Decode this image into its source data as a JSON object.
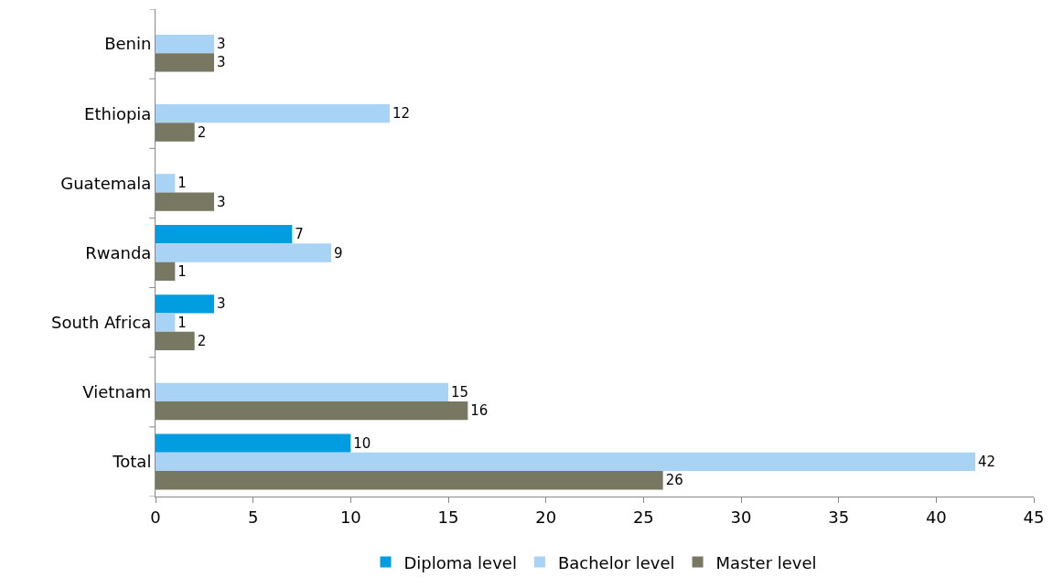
{
  "chart_data": {
    "type": "bar",
    "orientation": "horizontal",
    "categories": [
      "Benin",
      "Ethiopia",
      "Guatemala",
      "Rwanda",
      "South Africa",
      "Vietnam",
      "Total"
    ],
    "series": [
      {
        "name": "Diploma level",
        "color": "#009ee0",
        "values": [
          null,
          null,
          null,
          7,
          3,
          null,
          10
        ]
      },
      {
        "name": "Bachelor level",
        "color": "#a9d3f5",
        "values": [
          3,
          12,
          1,
          9,
          1,
          15,
          42
        ]
      },
      {
        "name": "Master level",
        "color": "#787862",
        "values": [
          3,
          2,
          3,
          1,
          2,
          16,
          26
        ]
      }
    ],
    "xlim": [
      0,
      45
    ],
    "xticks": [
      0,
      5,
      10,
      15,
      20,
      25,
      30,
      35,
      40,
      45
    ],
    "data_labels": true,
    "legend": "bottom"
  }
}
